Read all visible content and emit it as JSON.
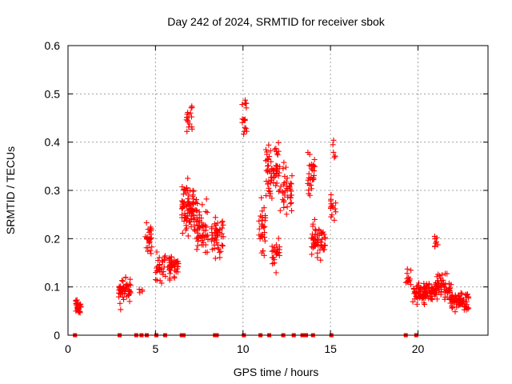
{
  "chart_data": {
    "type": "scatter",
    "title": "Day 242 of 2024, SRMTID for receiver sbok",
    "xlabel": "GPS time / hours",
    "ylabel": "SRMTID / TECUs",
    "xlim": [
      0,
      24
    ],
    "ylim": [
      0,
      0.6
    ],
    "xticks": [
      0,
      5,
      10,
      15,
      20
    ],
    "xtick_labels": [
      "0",
      "5",
      "10",
      "15",
      "20"
    ],
    "yticks": [
      0,
      0.1,
      0.2,
      0.3,
      0.4,
      0.5,
      0.6
    ],
    "ytick_labels": [
      "0",
      "0.1",
      "0.2",
      "0.3",
      "0.4",
      "0.5",
      "0.6"
    ],
    "grid": true,
    "marker": "+",
    "color": "#ff0000",
    "series": [
      {
        "name": "SRMTID",
        "clusters": [
          {
            "x": [
              0.45,
              0.75
            ],
            "y_center": 0.058,
            "y_spread": 0.022,
            "n": 30
          },
          {
            "x": [
              2.9,
              3.6
            ],
            "y_center": 0.09,
            "y_spread": 0.04,
            "n": 55
          },
          {
            "x": [
              4.05,
              4.25
            ],
            "y_center": 0.09,
            "y_spread": 0.02,
            "n": 4
          },
          {
            "x": [
              4.4,
              4.8
            ],
            "y_center": 0.2,
            "y_spread": 0.04,
            "n": 30
          },
          {
            "x": [
              5.0,
              5.6
            ],
            "y_center": 0.14,
            "y_spread": 0.04,
            "n": 30
          },
          {
            "x": [
              5.7,
              6.3
            ],
            "y_center": 0.14,
            "y_spread": 0.04,
            "n": 45
          },
          {
            "x": [
              6.5,
              7.3
            ],
            "y_center": 0.26,
            "y_spread": 0.08,
            "n": 85
          },
          {
            "x": [
              6.7,
              7.1
            ],
            "y_center": 0.45,
            "y_spread": 0.05,
            "n": 18
          },
          {
            "x": [
              7.3,
              8.0
            ],
            "y_center": 0.22,
            "y_spread": 0.07,
            "n": 55
          },
          {
            "x": [
              8.2,
              8.9
            ],
            "y_center": 0.21,
            "y_spread": 0.06,
            "n": 50
          },
          {
            "x": [
              9.95,
              10.25
            ],
            "y_center": 0.45,
            "y_spread": 0.07,
            "n": 18
          },
          {
            "x": [
              10.9,
              11.3
            ],
            "y_center": 0.22,
            "y_spread": 0.08,
            "n": 30
          },
          {
            "x": [
              11.3,
              12.1
            ],
            "y_center": 0.34,
            "y_spread": 0.09,
            "n": 65
          },
          {
            "x": [
              11.6,
              12.1
            ],
            "y_center": 0.17,
            "y_spread": 0.06,
            "n": 25
          },
          {
            "x": [
              12.1,
              12.8
            ],
            "y_center": 0.3,
            "y_spread": 0.08,
            "n": 40
          },
          {
            "x": [
              13.7,
              14.1
            ],
            "y_center": 0.33,
            "y_spread": 0.07,
            "n": 30
          },
          {
            "x": [
              13.9,
              14.7
            ],
            "y_center": 0.2,
            "y_spread": 0.05,
            "n": 55
          },
          {
            "x": [
              15.0,
              15.3
            ],
            "y_center": 0.26,
            "y_spread": 0.04,
            "n": 15
          },
          {
            "x": [
              15.1,
              15.3
            ],
            "y_center": 0.38,
            "y_spread": 0.04,
            "n": 6
          },
          {
            "x": [
              19.3,
              19.6
            ],
            "y_center": 0.12,
            "y_spread": 0.03,
            "n": 12
          },
          {
            "x": [
              19.7,
              20.4
            ],
            "y_center": 0.09,
            "y_spread": 0.035,
            "n": 45
          },
          {
            "x": [
              20.3,
              21.0
            ],
            "y_center": 0.09,
            "y_spread": 0.035,
            "n": 50
          },
          {
            "x": [
              20.95,
              21.15
            ],
            "y_center": 0.19,
            "y_spread": 0.03,
            "n": 8
          },
          {
            "x": [
              21.0,
              21.9
            ],
            "y_center": 0.1,
            "y_spread": 0.035,
            "n": 55
          },
          {
            "x": [
              21.8,
              22.9
            ],
            "y_center": 0.07,
            "y_spread": 0.03,
            "n": 75
          }
        ],
        "zero_points_x": [
          0.4,
          2.95,
          3.9,
          4.2,
          4.5,
          5.05,
          5.55,
          6.5,
          6.6,
          8.4,
          8.5,
          10.05,
          11.0,
          11.5,
          12.3,
          12.9,
          13.4,
          13.6,
          14.0,
          15.05,
          19.3,
          19.9
        ]
      }
    ]
  }
}
